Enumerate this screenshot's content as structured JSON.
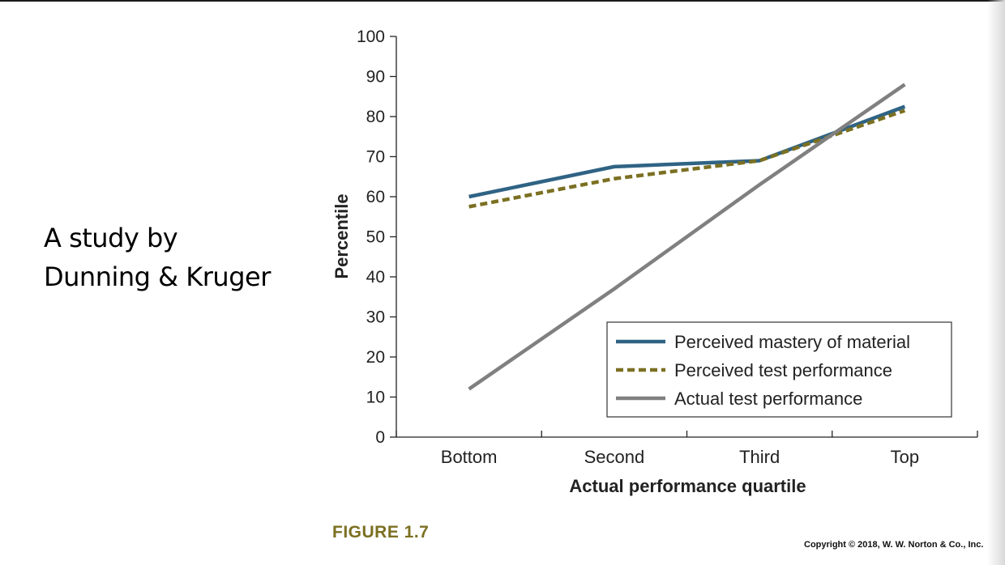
{
  "slide": {
    "text_lines": [
      "A study by",
      "Dunning & Kruger"
    ],
    "figure_label": "FIGURE 1.7",
    "copyright": "Copyright © 2018, W. W. Norton & Co., Inc."
  },
  "chart_data": {
    "type": "line",
    "title": "",
    "xlabel": "Actual performance quartile",
    "ylabel": "Percentile",
    "categories": [
      "Bottom",
      "Second",
      "Third",
      "Top"
    ],
    "ylim": [
      0,
      100
    ],
    "yticks": [
      0,
      10,
      20,
      30,
      40,
      50,
      60,
      70,
      80,
      90,
      100
    ],
    "grid": false,
    "legend_position": "bottom-right",
    "series": [
      {
        "name": "Perceived mastery of material",
        "values": [
          60,
          67.5,
          69,
          82.5
        ],
        "color": "#2f6384",
        "style": "solid"
      },
      {
        "name": "Perceived test performance",
        "values": [
          57.5,
          64.5,
          69,
          81.5
        ],
        "color": "#7b7022",
        "style": "dashed"
      },
      {
        "name": "Actual test performance",
        "values": [
          12,
          37,
          63,
          88
        ],
        "color": "#808080",
        "style": "solid"
      }
    ]
  }
}
